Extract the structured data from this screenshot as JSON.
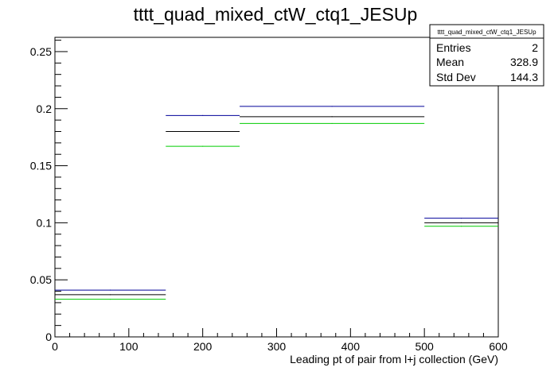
{
  "chart_data": {
    "type": "histogram",
    "title": "tttt_quad_mixed_ctW_ctq1_JESUp",
    "xlabel": "Leading pt of pair from l+j collection (GeV)",
    "ylabel": "",
    "xlim": [
      0,
      600
    ],
    "ylim": [
      0,
      0.2625
    ],
    "x_ticks": [
      0,
      100,
      200,
      300,
      400,
      500,
      600
    ],
    "y_ticks": [
      0,
      0.05,
      0.1,
      0.15,
      0.2,
      0.25
    ],
    "x_tick_labels": [
      "0",
      "100",
      "200",
      "300",
      "400",
      "500",
      "600"
    ],
    "y_tick_labels": [
      "0",
      "0.05",
      "0.1",
      "0.15",
      "0.2",
      "0.25"
    ],
    "bin_edges": [
      0,
      150,
      250,
      500,
      600
    ],
    "series": [
      {
        "color": "#000099",
        "values": [
          0.041,
          0.194,
          0.202,
          0.104
        ]
      },
      {
        "color": "#000000",
        "values": [
          0.037,
          0.18,
          0.193,
          0.1
        ]
      },
      {
        "color": "#00cc00",
        "values": [
          0.033,
          0.167,
          0.187,
          0.097
        ]
      }
    ],
    "grid": false,
    "legend": "none"
  },
  "stats_box": {
    "title": "tttt_quad_mixed_ctW_ctq1_JESUp",
    "rows": [
      {
        "name": "Entries",
        "value": "2"
      },
      {
        "name": "Mean",
        "value": "328.9"
      },
      {
        "name": "Std Dev",
        "value": "144.3"
      }
    ]
  }
}
